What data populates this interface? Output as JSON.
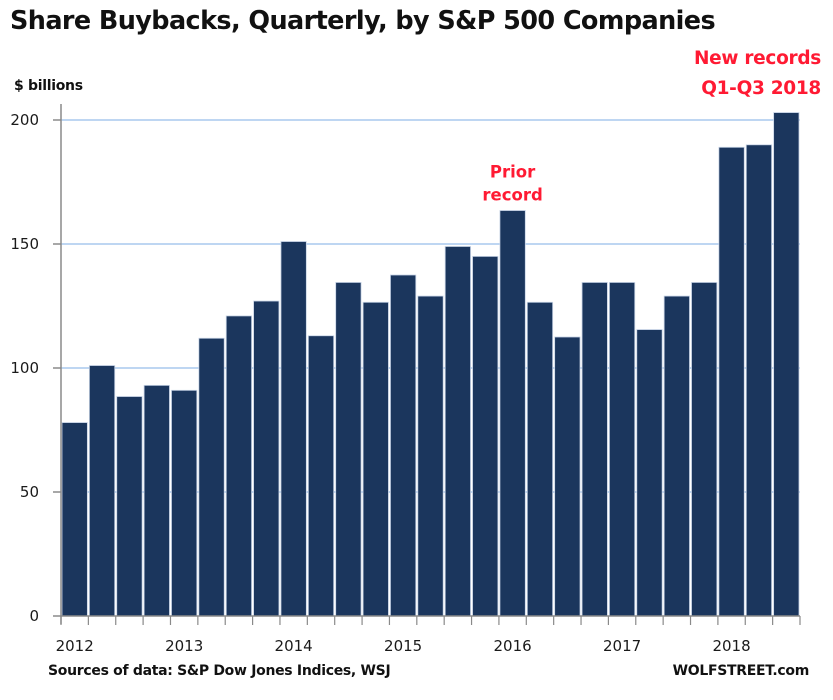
{
  "chart_data": {
    "type": "bar",
    "title": "Share Buybacks, Quarterly, by S&P 500 Companies",
    "ylabel": "$ billions",
    "xlabel": "",
    "ylim": [
      0,
      200
    ],
    "yticks": [
      0,
      50,
      100,
      150,
      200
    ],
    "grid": true,
    "categories": [
      "2012 Q1",
      "2012 Q2",
      "2012 Q3",
      "2012 Q4",
      "2013 Q1",
      "2013 Q2",
      "2013 Q3",
      "2013 Q4",
      "2014 Q1",
      "2014 Q2",
      "2014 Q3",
      "2014 Q4",
      "2015 Q1",
      "2015 Q2",
      "2015 Q3",
      "2015 Q4",
      "2016 Q1",
      "2016 Q2",
      "2016 Q3",
      "2016 Q4",
      "2017 Q1",
      "2017 Q2",
      "2017 Q3",
      "2017 Q4",
      "2018 Q1",
      "2018 Q2",
      "2018 Q3"
    ],
    "values": [
      78,
      101,
      88.5,
      93,
      91,
      112,
      121,
      127,
      151,
      113,
      134.5,
      126.5,
      137.5,
      129,
      149,
      145,
      163.5,
      126.5,
      112.5,
      134.5,
      134.5,
      115.5,
      129,
      134.5,
      189,
      190,
      203
    ],
    "xtick_labels": [
      "2012",
      "2013",
      "2014",
      "2015",
      "2016",
      "2017",
      "2018"
    ],
    "annotations": [
      {
        "lines": [
          "Prior",
          "record"
        ],
        "target": "2016 Q1"
      },
      {
        "lines": [
          "New records",
          "Q1-Q3 2018"
        ],
        "target": "2018 Q1-Q3"
      }
    ],
    "bar_color": "#1b365d",
    "grid_color": "#a9c8ee",
    "annotation_color": "#ff1a33"
  },
  "footer": {
    "source": "Sources of data: S&P Dow Jones Indices, WSJ",
    "brand": "WOLFSTREET.com"
  }
}
